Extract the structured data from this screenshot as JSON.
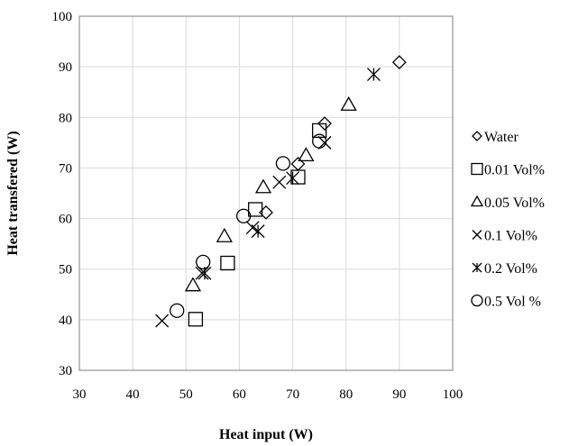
{
  "chart_data": {
    "type": "scatter",
    "title": "",
    "xlabel": "Heat input (W)",
    "ylabel": "Heat transfered (W)",
    "xlim": [
      30,
      100
    ],
    "ylim": [
      30,
      100
    ],
    "xticks": [
      30,
      40,
      50,
      60,
      70,
      80,
      90,
      100
    ],
    "yticks": [
      30,
      40,
      50,
      60,
      70,
      80,
      90,
      100
    ],
    "grid": true,
    "legend_position": "right",
    "series": [
      {
        "name": "Water",
        "marker": "diamond",
        "x": [
          65,
          71,
          76,
          90
        ],
        "y": [
          61.2,
          70.8,
          78.8,
          90.9
        ]
      },
      {
        "name": "0.01 Vol%",
        "marker": "square",
        "x": [
          51.8,
          57.8,
          63,
          71,
          75
        ],
        "y": [
          40.1,
          51.2,
          61.8,
          68.2,
          77.4
        ]
      },
      {
        "name": "0.05 Vol%",
        "marker": "triangle",
        "x": [
          51.3,
          57.2,
          64.5,
          72.5,
          80.5
        ],
        "y": [
          46.8,
          56.5,
          66.2,
          72.5,
          82.5
        ]
      },
      {
        "name": "0.1 Vol%",
        "marker": "x",
        "x": [
          45.5,
          53,
          62.5,
          67.5,
          76
        ],
        "y": [
          39.8,
          49.2,
          58.2,
          67.2,
          75
        ]
      },
      {
        "name": "0.2 Vol%",
        "marker": "asterisk",
        "x": [
          53.5,
          63.5,
          70,
          85.2
        ],
        "y": [
          49.2,
          57.5,
          68,
          88.5
        ]
      },
      {
        "name": "0.5 Vol %",
        "marker": "circle",
        "x": [
          48.3,
          53.2,
          60.8,
          68.2,
          75
        ],
        "y": [
          41.8,
          51.4,
          60.5,
          70.9,
          75.3
        ]
      }
    ]
  }
}
